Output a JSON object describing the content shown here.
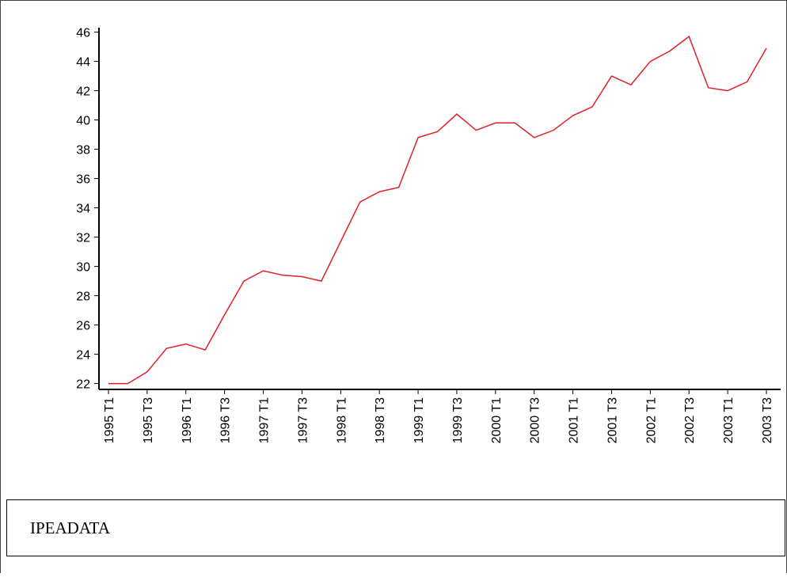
{
  "chart_data": {
    "type": "line",
    "categories": [
      "1995 T1",
      null,
      "1995 T3",
      null,
      "1996 T1",
      null,
      "1996 T3",
      null,
      "1997 T1",
      null,
      "1997 T3",
      null,
      "1998 T1",
      null,
      "1998 T3",
      null,
      "1999 T1",
      null,
      "1999 T3",
      null,
      "2000 T1",
      null,
      "2000 T3",
      null,
      "2001 T1",
      null,
      "2001 T3",
      null,
      "2002 T1",
      null,
      "2002 T3",
      null,
      "2003 T1",
      null,
      "2003 T3"
    ],
    "values": [
      22.0,
      22.0,
      22.8,
      24.4,
      24.7,
      24.3,
      26.7,
      29.0,
      29.7,
      29.4,
      29.3,
      29.0,
      31.7,
      34.4,
      35.1,
      35.4,
      38.8,
      39.2,
      40.4,
      39.3,
      39.8,
      39.8,
      38.8,
      39.3,
      40.3,
      40.9,
      43.0,
      42.4,
      44.0,
      44.7,
      45.7,
      42.2,
      42.0,
      42.6,
      44.9
    ],
    "color": "#e0202a",
    "ylim": [
      21.6,
      46.3
    ],
    "yticks": [
      22,
      24,
      26,
      28,
      30,
      32,
      34,
      36,
      38,
      40,
      42,
      44,
      46
    ],
    "source": "IPEADATA"
  }
}
